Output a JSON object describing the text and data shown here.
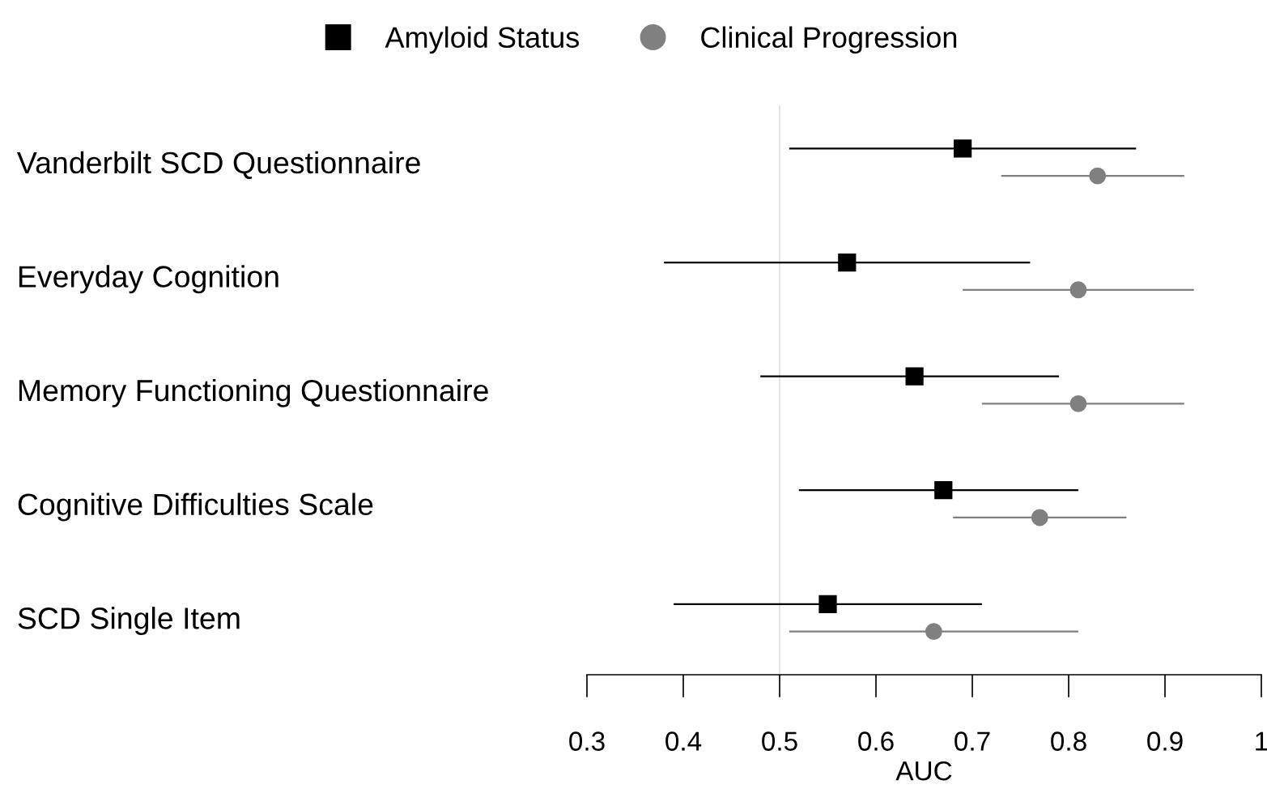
{
  "chart_data": {
    "type": "scatter",
    "orientation": "horizontal",
    "categories": [
      "Vanderbilt SCD Questionnaire",
      "Everyday Cognition",
      "Memory Functioning Questionnaire",
      "Cognitive Difficulties Scale",
      "SCD Single Item"
    ],
    "series": [
      {
        "name": "Amyloid Status",
        "color": "#000000",
        "marker": "square",
        "values": [
          0.69,
          0.57,
          0.64,
          0.67,
          0.55
        ],
        "errors": [
          [
            0.51,
            0.87
          ],
          [
            0.38,
            0.76
          ],
          [
            0.48,
            0.79
          ],
          [
            0.52,
            0.81
          ],
          [
            0.39,
            0.71
          ]
        ]
      },
      {
        "name": "Clinical Progression",
        "color": "#808080",
        "marker": "circle",
        "values": [
          0.83,
          0.81,
          0.81,
          0.77,
          0.66
        ],
        "errors": [
          [
            0.73,
            0.92
          ],
          [
            0.69,
            0.93
          ],
          [
            0.71,
            0.92
          ],
          [
            0.68,
            0.86
          ],
          [
            0.51,
            0.81
          ]
        ]
      }
    ],
    "xlabel": "AUC",
    "xlim": [
      0.3,
      1
    ],
    "xticks": [
      0.3,
      0.4,
      0.5,
      0.6,
      0.7,
      0.8,
      0.9,
      1
    ],
    "ref_lines": [
      {
        "axis": "x",
        "value": 0.5,
        "color": "#d9d9d9"
      }
    ],
    "legend": "top",
    "grid": false
  }
}
